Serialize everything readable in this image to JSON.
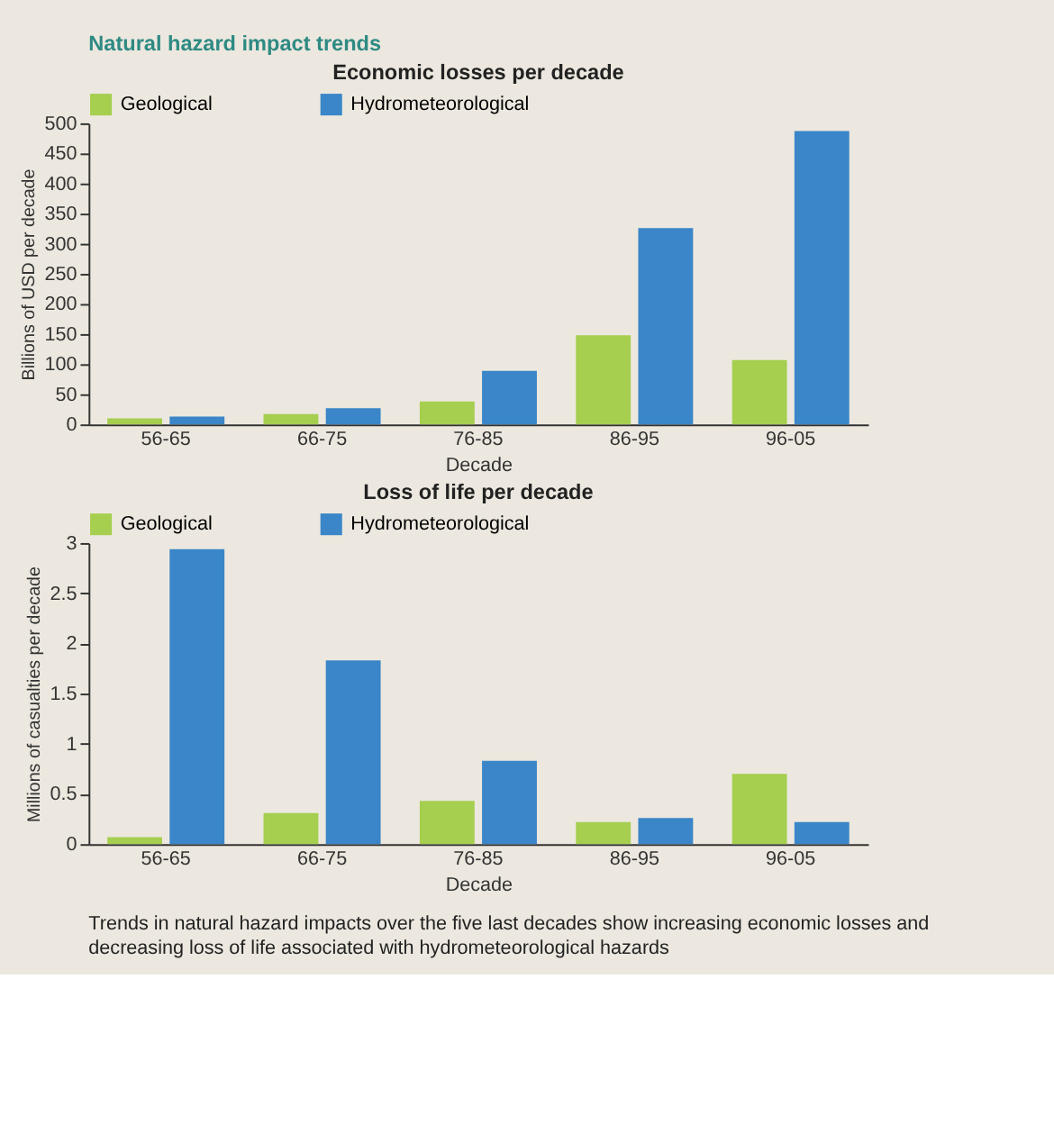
{
  "chart_data": [
    {
      "type": "bar",
      "title": "Economic losses per decade",
      "xlabel": "Decade",
      "ylabel": "Billions of USD per decade",
      "annotations": [
        "Natural hazard impact trends"
      ],
      "categories": [
        "56-65",
        "66-75",
        "76-85",
        "86-95",
        "96-05"
      ],
      "series": [
        {
          "name": "Geological",
          "color": "#a6ce4f",
          "values": [
            10,
            17,
            38,
            148,
            107
          ]
        },
        {
          "name": "Hydrometeorological",
          "color": "#3a86c8",
          "values": [
            13,
            27,
            89,
            326,
            487
          ]
        }
      ],
      "ylim": [
        0,
        500
      ],
      "yticks": [
        0,
        50,
        100,
        150,
        200,
        250,
        300,
        350,
        400,
        450,
        500
      ],
      "grid": false,
      "legend": "top"
    },
    {
      "type": "bar",
      "title": "Loss of life per decade",
      "xlabel": "Decade",
      "ylabel": "Millions of casualties per decade",
      "annotations": [
        "Trends in natural hazard impacts over the five last decades show increasing economic losses and decreasing loss of life associated with hydrometeorological hazards"
      ],
      "categories": [
        "56-65",
        "66-75",
        "76-85",
        "86-95",
        "96-05"
      ],
      "series": [
        {
          "name": "Geological",
          "color": "#a6ce4f",
          "values": [
            0.07,
            0.31,
            0.43,
            0.22,
            0.7
          ]
        },
        {
          "name": "Hydrometeorological",
          "color": "#3a86c8",
          "values": [
            2.94,
            1.83,
            0.83,
            0.26,
            0.22
          ]
        }
      ],
      "ylim": [
        0,
        3
      ],
      "yticks": [
        0,
        0.5,
        1,
        1.5,
        2,
        2.5,
        3
      ],
      "grid": false,
      "legend": "top"
    }
  ]
}
